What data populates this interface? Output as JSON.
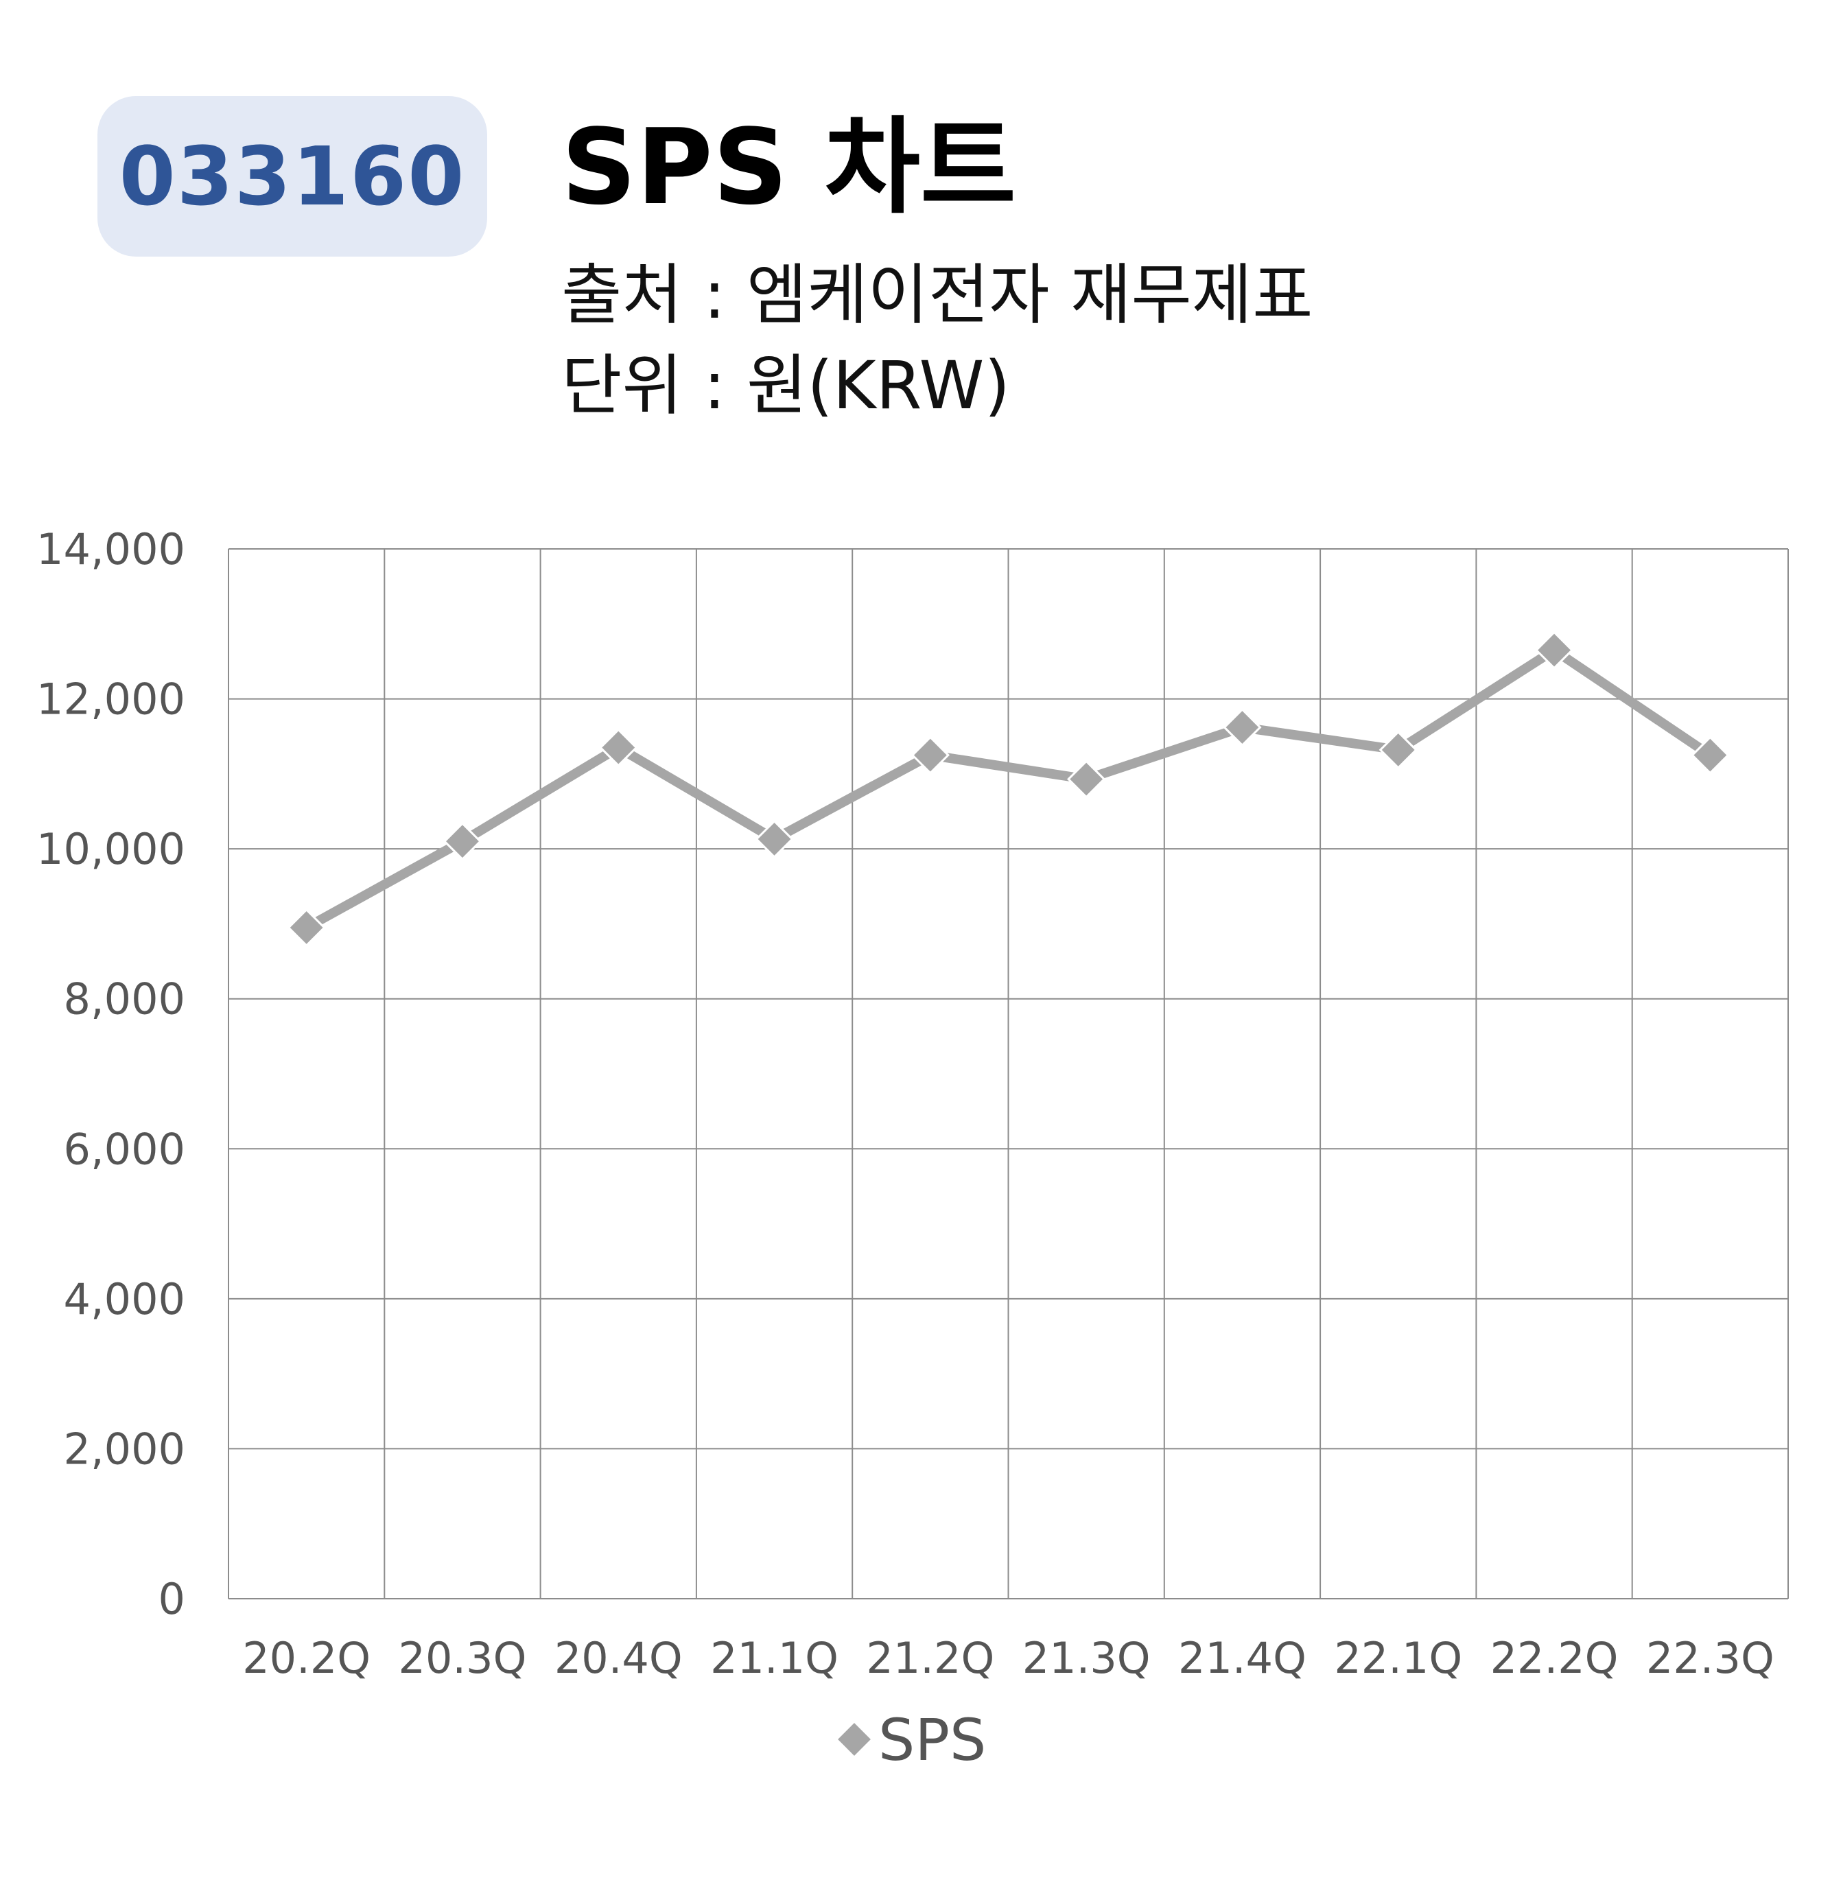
{
  "header": {
    "code": "033160",
    "title": "SPS 차트",
    "source": "출처 : 엠케이전자 재무제표",
    "unit": "단위 : 원(KRW)"
  },
  "colors": {
    "badge_bg": "#e3e9f5",
    "badge_text": "#2f5597",
    "series": "#a6a6a6",
    "grid": "#8c8c8c"
  },
  "chart_data": {
    "type": "line",
    "categories": [
      "20.2Q",
      "20.3Q",
      "20.4Q",
      "21.1Q",
      "21.2Q",
      "21.3Q",
      "21.4Q",
      "22.1Q",
      "22.2Q",
      "22.3Q"
    ],
    "series": [
      {
        "name": "SPS",
        "values": [
          8950,
          10100,
          11350,
          10130,
          11250,
          10930,
          11620,
          11320,
          12650,
          11250
        ]
      }
    ],
    "ylim": [
      0,
      14000
    ],
    "yticks": [
      0,
      2000,
      4000,
      6000,
      8000,
      10000,
      12000,
      14000
    ],
    "ytick_labels": [
      "0",
      "2,000",
      "4,000",
      "6,000",
      "8,000",
      "10,000",
      "12,000",
      "14,000"
    ],
    "marker": "diamond",
    "grid": true,
    "legend": "bottom-center"
  }
}
